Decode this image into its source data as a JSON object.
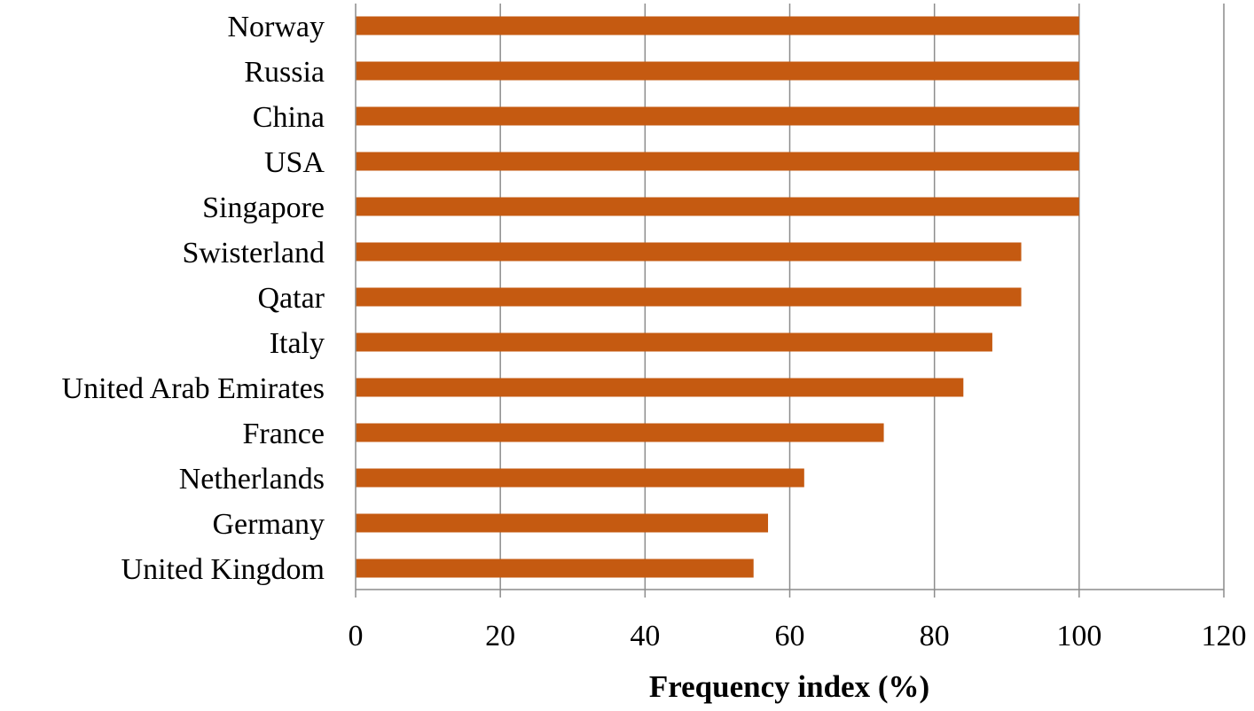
{
  "chart_data": {
    "type": "bar",
    "orientation": "horizontal",
    "categories": [
      "Norway",
      "Russia",
      "China",
      "USA",
      "Singapore",
      "Swisterland",
      "Qatar",
      "Italy",
      "United Arab Emirates",
      "France",
      "Netherlands",
      "Germany",
      "United Kingdom"
    ],
    "values": [
      100,
      100,
      100,
      100,
      100,
      92,
      92,
      88,
      84,
      73,
      62,
      57,
      55
    ],
    "title": "",
    "xlabel": "Frequency index (%)",
    "ylabel": "",
    "xlim": [
      0,
      120
    ],
    "x_ticks": [
      0,
      20,
      40,
      60,
      80,
      100,
      120
    ],
    "grid": "vertical",
    "legend": "none",
    "bar_color": "#C55A11",
    "gridline_color": "#8c8c8c"
  }
}
